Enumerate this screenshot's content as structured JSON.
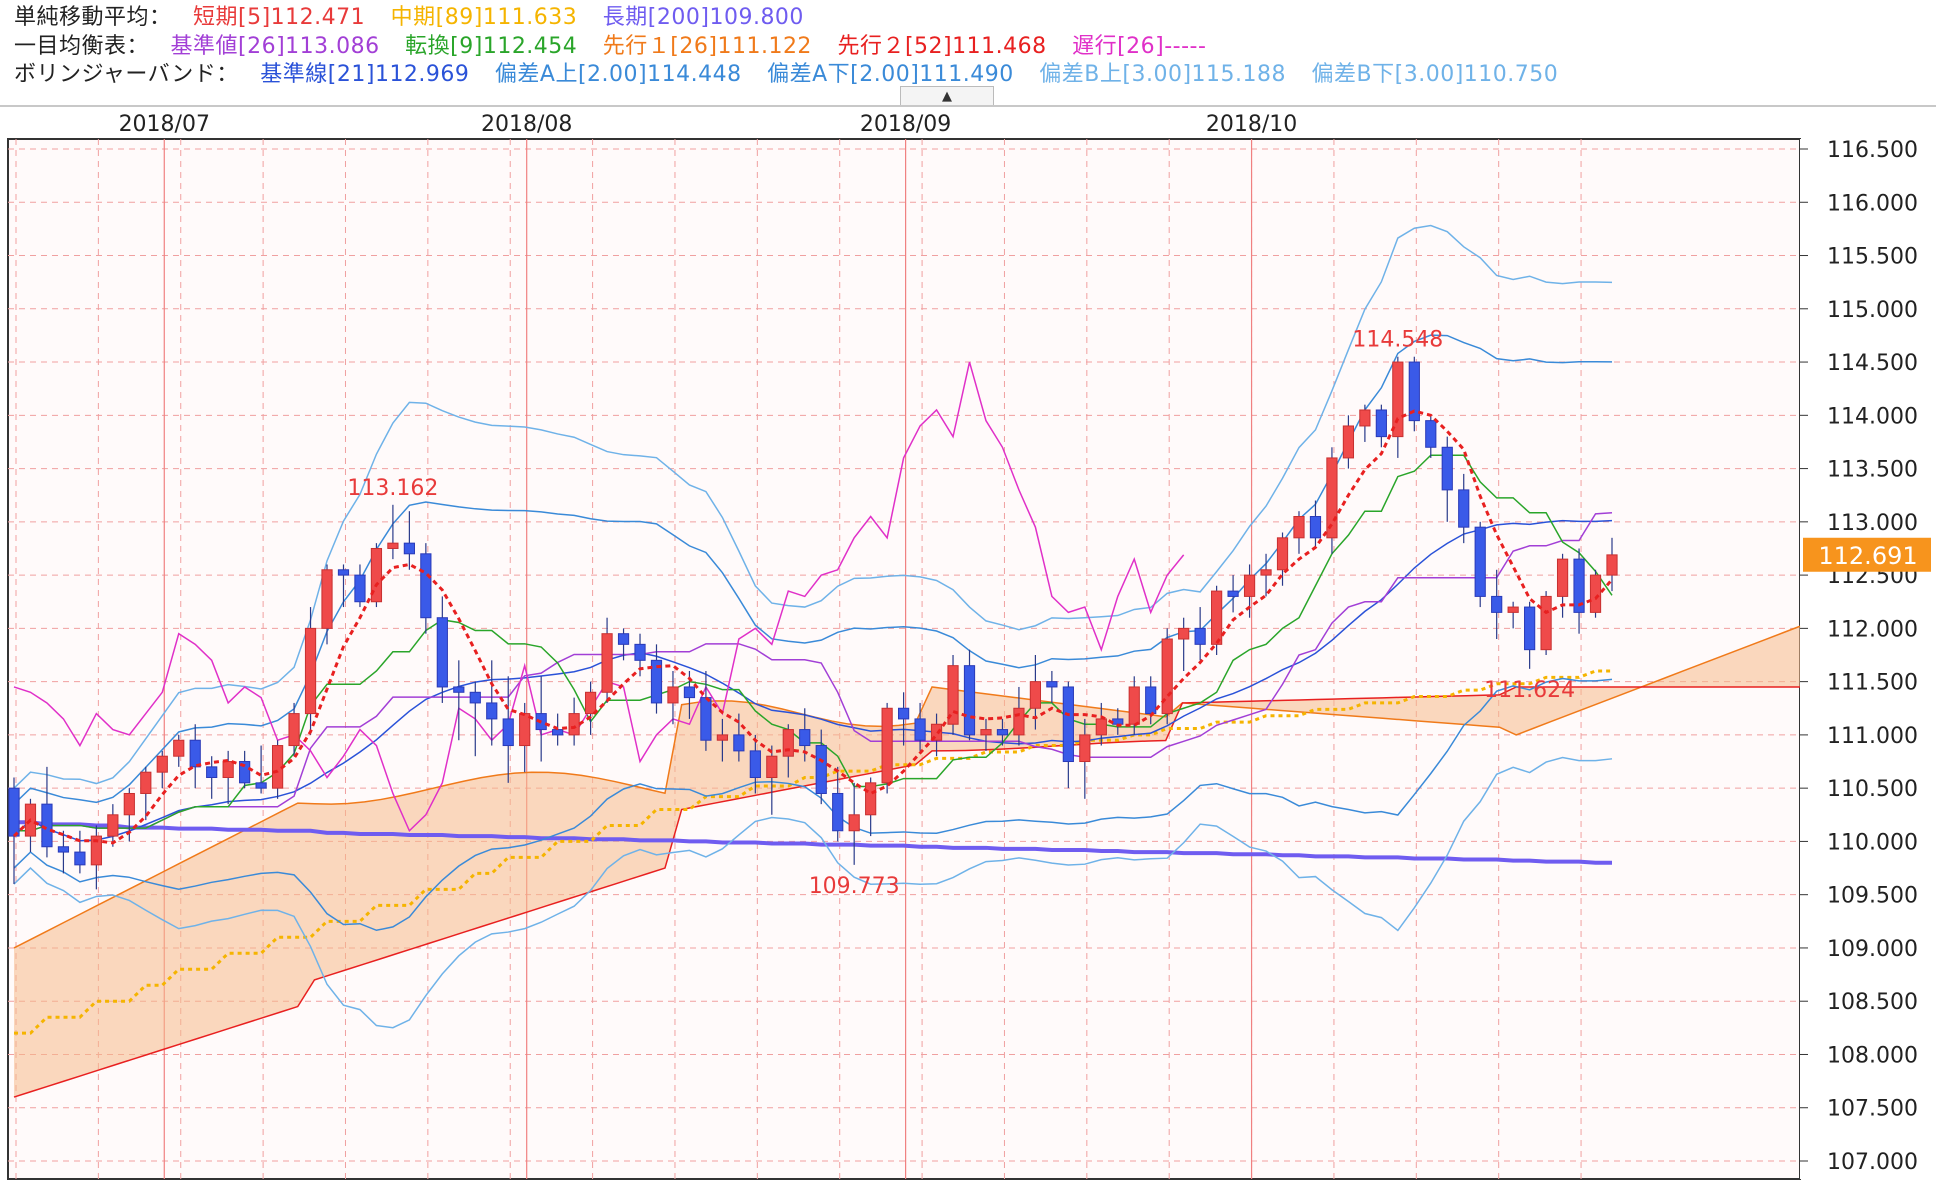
{
  "legend": {
    "sma": {
      "label": "単純移動平均：",
      "short": {
        "text": "短期[5]112.471",
        "color": "#e83a3a"
      },
      "mid": {
        "text": "中期[89]111.633",
        "color": "#f5b400"
      },
      "long": {
        "text": "長期[200]109.800",
        "color": "#6f5cf0"
      }
    },
    "ichimoku": {
      "label": "一目均衡表：",
      "kijun": {
        "text": "基準値[26]113.086",
        "color": "#a23fd6"
      },
      "tenkan": {
        "text": "転換[9]112.454",
        "color": "#2aa52a"
      },
      "senkou1": {
        "text": "先行１[26]111.122",
        "color": "#f07a1a"
      },
      "senkou2": {
        "text": "先行２[52]111.468",
        "color": "#e82020"
      },
      "chikou": {
        "text": "遅行[26]-----",
        "color": "#e030c8"
      }
    },
    "bollinger": {
      "label": "ボリンジャーバンド：",
      "mid": {
        "text": "基準線[21]112.969",
        "color": "#2a52d8"
      },
      "upper2": {
        "text": "偏差A上[2.00]114.448",
        "color": "#3a8ad8"
      },
      "lower2": {
        "text": "偏差A下[2.00]111.490",
        "color": "#3a8ad8"
      },
      "upper3": {
        "text": "偏差B上[3.00]115.188",
        "color": "#6fb2e8"
      },
      "lower3": {
        "text": "偏差B下[3.00]110.750",
        "color": "#6fb2e8"
      }
    },
    "collapse_glyph": "▲"
  },
  "chart_data": {
    "type": "candlestick",
    "ylim": [
      107.0,
      116.5
    ],
    "y_ticks": [
      "116.500",
      "116.000",
      "115.500",
      "115.000",
      "114.500",
      "114.000",
      "113.500",
      "113.000",
      "112.500",
      "112.000",
      "111.500",
      "111.000",
      "110.500",
      "110.000",
      "109.500",
      "109.000",
      "108.500",
      "108.000",
      "107.500",
      "107.000"
    ],
    "month_labels": [
      "2018/07",
      "2018/08",
      "2018/09",
      "2018/10"
    ],
    "current_price": "112.691",
    "annotations": [
      {
        "text": "113.162",
        "kind": "high"
      },
      {
        "text": "109.773",
        "kind": "low"
      },
      {
        "text": "114.548",
        "kind": "high"
      },
      {
        "text": "111.624",
        "kind": "low"
      }
    ],
    "candles": [
      {
        "o": 110.5,
        "h": 110.6,
        "l": 109.6,
        "c": 110.05
      },
      {
        "o": 110.05,
        "h": 110.4,
        "l": 109.9,
        "c": 110.35
      },
      {
        "o": 110.35,
        "h": 110.7,
        "l": 109.85,
        "c": 109.95
      },
      {
        "o": 109.95,
        "h": 110.1,
        "l": 109.7,
        "c": 109.9
      },
      {
        "o": 109.9,
        "h": 110.1,
        "l": 109.7,
        "c": 109.78
      },
      {
        "o": 109.78,
        "h": 110.15,
        "l": 109.55,
        "c": 110.05
      },
      {
        "o": 110.05,
        "h": 110.35,
        "l": 109.95,
        "c": 110.25
      },
      {
        "o": 110.25,
        "h": 110.5,
        "l": 110.0,
        "c": 110.45
      },
      {
        "o": 110.45,
        "h": 110.7,
        "l": 110.2,
        "c": 110.65
      },
      {
        "o": 110.65,
        "h": 110.85,
        "l": 110.5,
        "c": 110.8
      },
      {
        "o": 110.8,
        "h": 111.0,
        "l": 110.7,
        "c": 110.95
      },
      {
        "o": 110.95,
        "h": 111.1,
        "l": 110.5,
        "c": 110.7
      },
      {
        "o": 110.7,
        "h": 110.8,
        "l": 110.4,
        "c": 110.6
      },
      {
        "o": 110.6,
        "h": 110.85,
        "l": 110.35,
        "c": 110.75
      },
      {
        "o": 110.75,
        "h": 110.85,
        "l": 110.5,
        "c": 110.55
      },
      {
        "o": 110.55,
        "h": 110.9,
        "l": 110.45,
        "c": 110.5
      },
      {
        "o": 110.5,
        "h": 110.95,
        "l": 110.4,
        "c": 110.9
      },
      {
        "o": 110.9,
        "h": 111.3,
        "l": 110.8,
        "c": 111.2
      },
      {
        "o": 111.2,
        "h": 112.2,
        "l": 111.0,
        "c": 112.0
      },
      {
        "o": 112.0,
        "h": 112.6,
        "l": 111.85,
        "c": 112.55
      },
      {
        "o": 112.55,
        "h": 112.6,
        "l": 112.2,
        "c": 112.5
      },
      {
        "o": 112.5,
        "h": 112.6,
        "l": 112.2,
        "c": 112.25
      },
      {
        "o": 112.25,
        "h": 112.8,
        "l": 112.2,
        "c": 112.75
      },
      {
        "o": 112.75,
        "h": 113.16,
        "l": 112.65,
        "c": 112.8
      },
      {
        "o": 112.8,
        "h": 113.1,
        "l": 112.55,
        "c": 112.7
      },
      {
        "o": 112.7,
        "h": 112.8,
        "l": 111.95,
        "c": 112.1
      },
      {
        "o": 112.1,
        "h": 112.3,
        "l": 111.3,
        "c": 111.45
      },
      {
        "o": 111.45,
        "h": 111.7,
        "l": 110.95,
        "c": 111.4
      },
      {
        "o": 111.4,
        "h": 111.5,
        "l": 110.8,
        "c": 111.3
      },
      {
        "o": 111.3,
        "h": 111.7,
        "l": 110.9,
        "c": 111.15
      },
      {
        "o": 111.15,
        "h": 111.55,
        "l": 110.55,
        "c": 110.9
      },
      {
        "o": 110.9,
        "h": 111.3,
        "l": 110.65,
        "c": 111.2
      },
      {
        "o": 111.2,
        "h": 111.55,
        "l": 110.75,
        "c": 111.05
      },
      {
        "o": 111.05,
        "h": 111.2,
        "l": 110.9,
        "c": 111.0
      },
      {
        "o": 111.0,
        "h": 111.35,
        "l": 110.9,
        "c": 111.2
      },
      {
        "o": 111.2,
        "h": 111.5,
        "l": 111.0,
        "c": 111.4
      },
      {
        "o": 111.4,
        "h": 112.1,
        "l": 111.3,
        "c": 111.95
      },
      {
        "o": 111.95,
        "h": 112.0,
        "l": 111.7,
        "c": 111.85
      },
      {
        "o": 111.85,
        "h": 111.95,
        "l": 111.55,
        "c": 111.7
      },
      {
        "o": 111.7,
        "h": 111.85,
        "l": 111.2,
        "c": 111.3
      },
      {
        "o": 111.3,
        "h": 111.6,
        "l": 111.1,
        "c": 111.45
      },
      {
        "o": 111.45,
        "h": 111.6,
        "l": 111.15,
        "c": 111.35
      },
      {
        "o": 111.35,
        "h": 111.6,
        "l": 110.85,
        "c": 110.95
      },
      {
        "o": 110.95,
        "h": 111.15,
        "l": 110.75,
        "c": 111.0
      },
      {
        "o": 111.0,
        "h": 111.2,
        "l": 110.75,
        "c": 110.85
      },
      {
        "o": 110.85,
        "h": 111.0,
        "l": 110.45,
        "c": 110.6
      },
      {
        "o": 110.6,
        "h": 110.9,
        "l": 110.25,
        "c": 110.8
      },
      {
        "o": 110.8,
        "h": 111.1,
        "l": 110.6,
        "c": 111.05
      },
      {
        "o": 111.05,
        "h": 111.25,
        "l": 110.75,
        "c": 110.9
      },
      {
        "o": 110.9,
        "h": 111.05,
        "l": 110.35,
        "c": 110.45
      },
      {
        "o": 110.45,
        "h": 110.7,
        "l": 110.0,
        "c": 110.1
      },
      {
        "o": 110.1,
        "h": 110.55,
        "l": 109.78,
        "c": 110.25
      },
      {
        "o": 110.25,
        "h": 110.6,
        "l": 110.05,
        "c": 110.55
      },
      {
        "o": 110.55,
        "h": 111.3,
        "l": 110.45,
        "c": 111.25
      },
      {
        "o": 111.25,
        "h": 111.4,
        "l": 110.9,
        "c": 111.15
      },
      {
        "o": 111.15,
        "h": 111.3,
        "l": 110.85,
        "c": 110.95
      },
      {
        "o": 110.95,
        "h": 111.2,
        "l": 110.8,
        "c": 111.1
      },
      {
        "o": 111.1,
        "h": 111.75,
        "l": 111.0,
        "c": 111.65
      },
      {
        "o": 111.65,
        "h": 111.8,
        "l": 110.95,
        "c": 111.0
      },
      {
        "o": 111.0,
        "h": 111.15,
        "l": 110.85,
        "c": 111.05
      },
      {
        "o": 111.05,
        "h": 111.15,
        "l": 110.9,
        "c": 111.0
      },
      {
        "o": 111.0,
        "h": 111.45,
        "l": 110.9,
        "c": 111.25
      },
      {
        "o": 111.25,
        "h": 111.75,
        "l": 111.05,
        "c": 111.5
      },
      {
        "o": 111.5,
        "h": 111.6,
        "l": 111.3,
        "c": 111.45
      },
      {
        "o": 111.45,
        "h": 111.5,
        "l": 110.5,
        "c": 110.75
      },
      {
        "o": 110.75,
        "h": 111.15,
        "l": 110.4,
        "c": 111.0
      },
      {
        "o": 111.0,
        "h": 111.3,
        "l": 110.9,
        "c": 111.15
      },
      {
        "o": 111.15,
        "h": 111.25,
        "l": 111.0,
        "c": 111.1
      },
      {
        "o": 111.1,
        "h": 111.55,
        "l": 111.0,
        "c": 111.45
      },
      {
        "o": 111.45,
        "h": 111.55,
        "l": 111.1,
        "c": 111.2
      },
      {
        "o": 111.2,
        "h": 112.0,
        "l": 111.1,
        "c": 111.9
      },
      {
        "o": 111.9,
        "h": 112.1,
        "l": 111.6,
        "c": 112.0
      },
      {
        "o": 112.0,
        "h": 112.2,
        "l": 111.7,
        "c": 111.85
      },
      {
        "o": 111.85,
        "h": 112.4,
        "l": 111.75,
        "c": 112.35
      },
      {
        "o": 112.35,
        "h": 112.5,
        "l": 112.15,
        "c": 112.3
      },
      {
        "o": 112.3,
        "h": 112.6,
        "l": 112.1,
        "c": 112.5
      },
      {
        "o": 112.5,
        "h": 112.7,
        "l": 112.3,
        "c": 112.55
      },
      {
        "o": 112.55,
        "h": 112.9,
        "l": 112.4,
        "c": 112.85
      },
      {
        "o": 112.85,
        "h": 113.1,
        "l": 112.7,
        "c": 113.05
      },
      {
        "o": 113.05,
        "h": 113.2,
        "l": 112.75,
        "c": 112.85
      },
      {
        "o": 112.85,
        "h": 113.7,
        "l": 112.7,
        "c": 113.6
      },
      {
        "o": 113.6,
        "h": 114.0,
        "l": 113.5,
        "c": 113.9
      },
      {
        "o": 113.9,
        "h": 114.1,
        "l": 113.75,
        "c": 114.05
      },
      {
        "o": 114.05,
        "h": 114.1,
        "l": 113.7,
        "c": 113.8
      },
      {
        "o": 113.8,
        "h": 114.55,
        "l": 113.6,
        "c": 114.5
      },
      {
        "o": 114.5,
        "h": 114.55,
        "l": 113.85,
        "c": 113.95
      },
      {
        "o": 113.95,
        "h": 114.0,
        "l": 113.6,
        "c": 113.7
      },
      {
        "o": 113.7,
        "h": 113.8,
        "l": 113.0,
        "c": 113.3
      },
      {
        "o": 113.3,
        "h": 113.45,
        "l": 112.8,
        "c": 112.95
      },
      {
        "o": 112.95,
        "h": 113.0,
        "l": 112.2,
        "c": 112.3
      },
      {
        "o": 112.3,
        "h": 112.55,
        "l": 111.9,
        "c": 112.15
      },
      {
        "o": 112.15,
        "h": 112.25,
        "l": 112.0,
        "c": 112.2
      },
      {
        "o": 112.2,
        "h": 112.25,
        "l": 111.62,
        "c": 111.8
      },
      {
        "o": 111.8,
        "h": 112.35,
        "l": 111.75,
        "c": 112.3
      },
      {
        "o": 112.3,
        "h": 112.7,
        "l": 112.1,
        "c": 112.65
      },
      {
        "o": 112.65,
        "h": 112.75,
        "l": 111.95,
        "c": 112.15
      },
      {
        "o": 112.15,
        "h": 112.55,
        "l": 112.1,
        "c": 112.5
      },
      {
        "o": 112.5,
        "h": 112.85,
        "l": 112.35,
        "c": 112.69
      }
    ],
    "sma_long": [
      110.18,
      110.16,
      110.15,
      110.13,
      110.12,
      110.11,
      110.1,
      110.08,
      110.07,
      110.06,
      110.05,
      110.04,
      110.03,
      110.02,
      110.01,
      110.0,
      109.99,
      109.98,
      109.97,
      109.96,
      109.95,
      109.94,
      109.93,
      109.92,
      109.91,
      109.9,
      109.89,
      109.88,
      109.87,
      109.86,
      109.85,
      109.84,
      109.83,
      109.82,
      109.81,
      109.8
    ],
    "sma_mid": [
      108.2,
      108.35,
      108.5,
      108.65,
      108.8,
      108.95,
      109.1,
      109.25,
      109.4,
      109.55,
      109.7,
      109.85,
      110.0,
      110.15,
      110.3,
      110.42,
      110.52,
      110.6,
      110.66,
      110.72,
      110.78,
      110.84,
      110.9,
      110.95,
      111.0,
      111.06,
      111.12,
      111.18,
      111.24,
      111.3,
      111.36,
      111.42,
      111.48,
      111.54,
      111.6
    ]
  }
}
